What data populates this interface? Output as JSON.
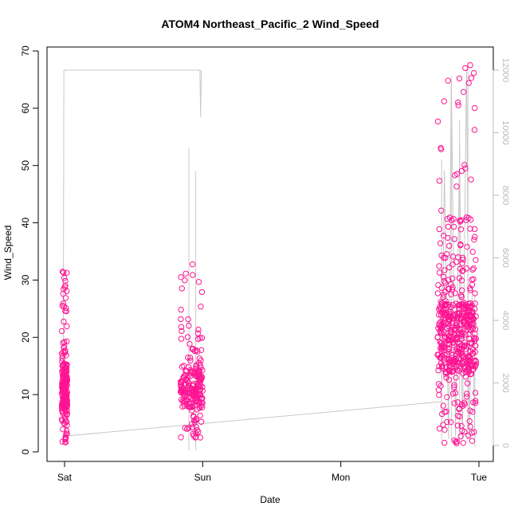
{
  "chart_data": {
    "type": "scatter",
    "title": "ATOM4 Northeast_Pacific_2 Wind_Speed",
    "xlabel": "Date",
    "ylabel": "Wind_Speed",
    "x_ticks": [
      "Sat",
      "Sun",
      "Mon",
      "Tue"
    ],
    "ylim": [
      0,
      70
    ],
    "y_ticks": [
      0,
      10,
      20,
      30,
      40,
      50,
      60,
      70
    ],
    "y2lim": [
      0,
      12000
    ],
    "y2_ticks": [
      0,
      2000,
      4000,
      6000,
      8000,
      10000,
      12000
    ],
    "grid": false,
    "colors": {
      "points": "#ff1493",
      "secondary_line": "#c8c8c8",
      "secondary_axis": "#bbbbbb"
    },
    "series": [
      {
        "type": "scatter",
        "axis": "left",
        "clusters": [
          {
            "x_start": -0.02,
            "x_end": 0.02,
            "min": 1.5,
            "max": 31.5,
            "center": 11
          },
          {
            "x_start": 0.84,
            "x_end": 1.0,
            "min": 2.5,
            "max": 33.5,
            "center": 11
          },
          {
            "x_start": 2.7,
            "x_end": 2.98,
            "min": 1.5,
            "max": 68,
            "center": 20
          }
        ]
      },
      {
        "type": "line",
        "axis": "right",
        "points": [
          [
            -0.01,
            1300
          ],
          [
            -0.005,
            12000
          ],
          [
            0.98,
            12000
          ],
          [
            0.985,
            10500
          ],
          [
            0.99,
            12000
          ],
          [
            0.0,
            300
          ],
          [
            2.73,
            1400
          ],
          [
            2.75,
            8800
          ],
          [
            2.78,
            200
          ],
          [
            2.8,
            11800
          ],
          [
            2.83,
            300
          ],
          [
            2.86,
            9600
          ],
          [
            2.88,
            200
          ],
          [
            2.91,
            12000
          ],
          [
            2.93,
            200
          ],
          [
            2.95,
            4800
          ],
          [
            2.97,
            200
          ]
        ]
      }
    ]
  }
}
